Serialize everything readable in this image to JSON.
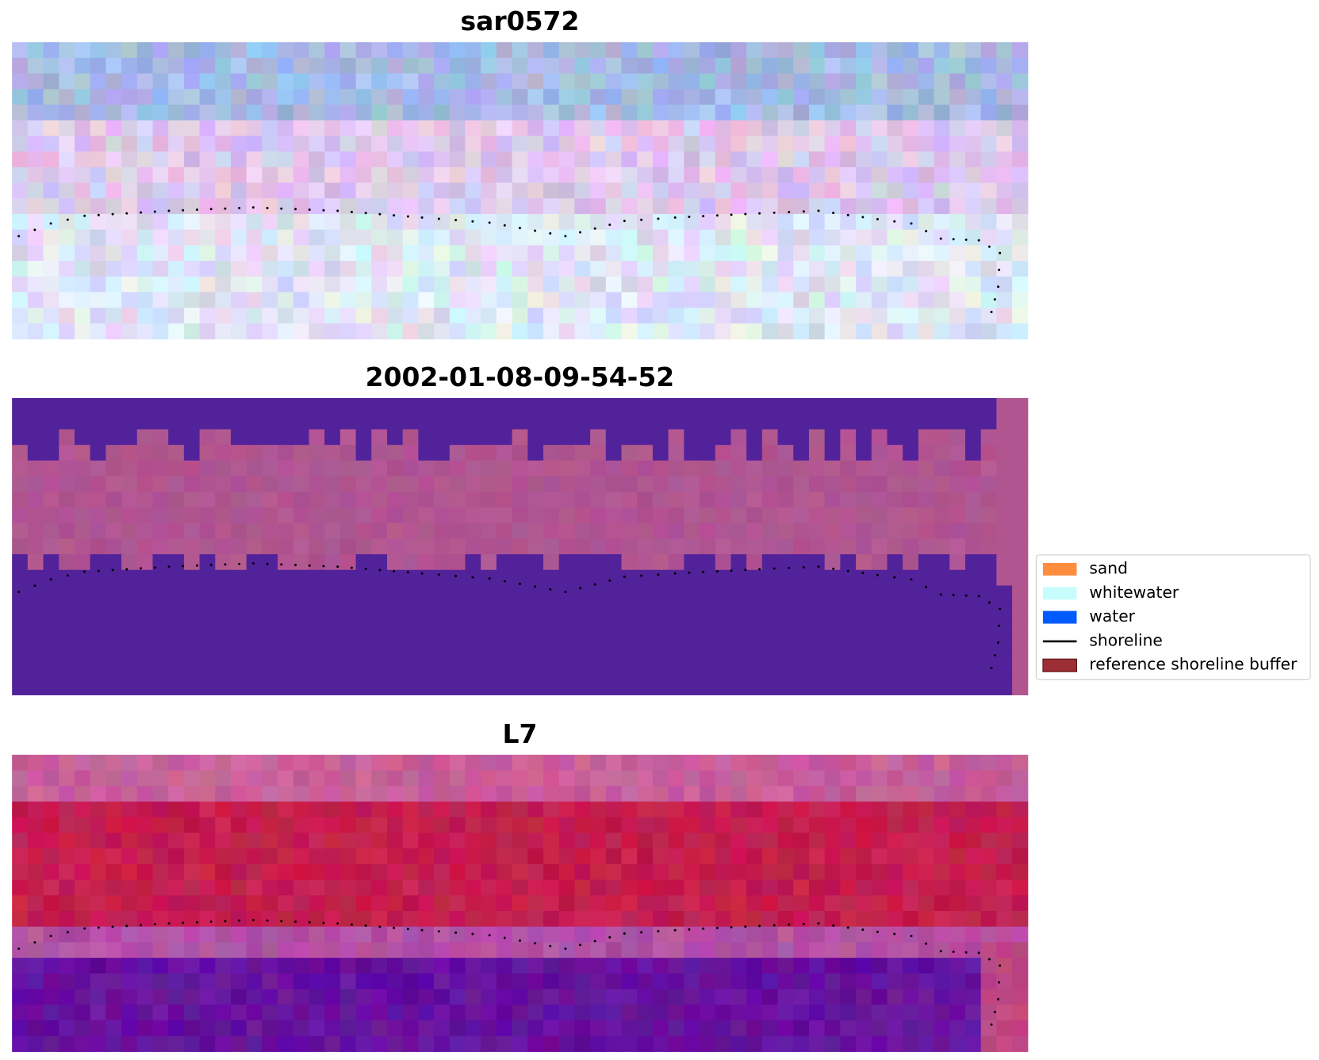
{
  "panels": [
    {
      "title": "sar0572"
    },
    {
      "title": "2002-01-08-09-54-52"
    },
    {
      "title": "L7"
    }
  ],
  "legend": [
    {
      "label": "sand",
      "color": "#ff8c3f",
      "kind": "patch"
    },
    {
      "label": "whitewater",
      "color": "#c7fcfc",
      "kind": "patch"
    },
    {
      "label": "water",
      "color": "#005bff",
      "kind": "patch"
    },
    {
      "label": "shoreline",
      "color": "#000000",
      "kind": "line"
    },
    {
      "label": "reference shoreline buffer",
      "color": "#9c2f35",
      "kind": "patch"
    }
  ]
}
